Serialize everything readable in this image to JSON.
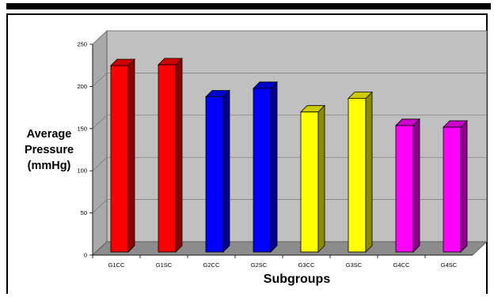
{
  "chart_data": {
    "type": "bar",
    "title": "",
    "xlabel": "Subgroups",
    "ylabel": "Average Pressure (mmHg)",
    "ylabel_lines": [
      "Average",
      "Pressure",
      "(mmHg)"
    ],
    "categories": [
      "G1CC",
      "G1SC",
      "G2CC",
      "G2SC",
      "G3CC",
      "G3SC",
      "G4CC",
      "G4SC"
    ],
    "values": [
      221,
      222,
      184,
      194,
      166,
      182,
      150,
      148
    ],
    "colors": [
      "#ff0000",
      "#ff0000",
      "#0000ff",
      "#0000ff",
      "#ffff00",
      "#ffff00",
      "#ff00ff",
      "#ff00ff"
    ],
    "ylim": [
      0,
      250
    ],
    "yticks": [
      0,
      50,
      100,
      150,
      200,
      250
    ],
    "ytick_labels": [
      "0",
      "50",
      "100",
      "150",
      "200",
      "250"
    ],
    "grid": true,
    "style": "3d-column",
    "legend": "none"
  }
}
